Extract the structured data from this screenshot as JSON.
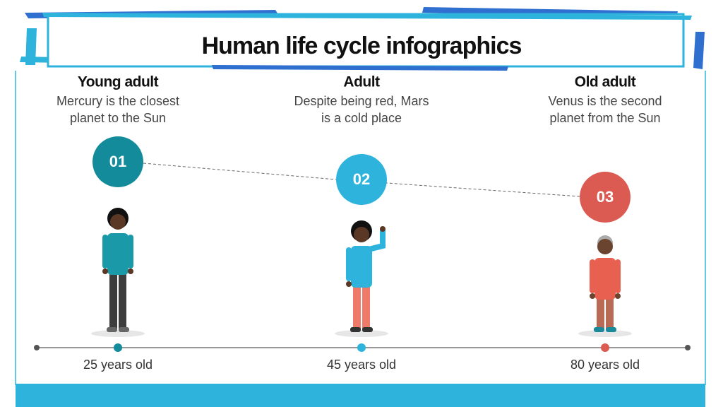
{
  "title": "Human life cycle infographics",
  "stages": [
    {
      "title": "Young adult",
      "description": [
        "Mercury is the closest",
        "planet to the Sun"
      ],
      "number": "01",
      "age": "25 years old"
    },
    {
      "title": "Adult",
      "description": [
        "Despite being red, Mars",
        "is a cold place"
      ],
      "number": "02",
      "age": "45 years old"
    },
    {
      "title": "Old adult",
      "description": [
        "Venus is the second",
        "planet from the Sun"
      ],
      "number": "03",
      "age": "80 years old"
    }
  ]
}
